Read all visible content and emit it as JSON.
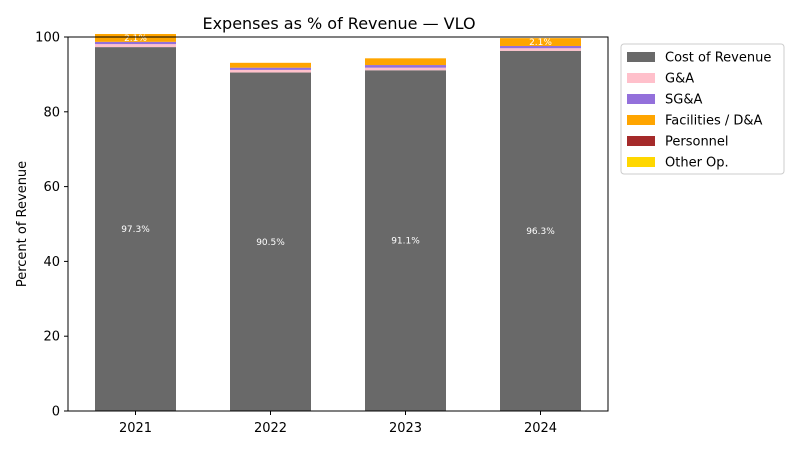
{
  "chart_data": {
    "type": "bar",
    "stacked": true,
    "title": "Expenses as % of Revenue — VLO",
    "xlabel": "",
    "ylabel": "Percent of Revenue",
    "categories": [
      "2021",
      "2022",
      "2023",
      "2024"
    ],
    "ylim": [
      0,
      100
    ],
    "yticks": [
      0,
      20,
      40,
      60,
      80,
      100
    ],
    "grid": false,
    "legend_position": "outside-right",
    "series": [
      {
        "name": "Cost of Revenue",
        "color": "#696969",
        "values": [
          97.3,
          90.5,
          91.1,
          96.3
        ],
        "labels": [
          "97.3%",
          "90.5%",
          "91.1%",
          "96.3%"
        ]
      },
      {
        "name": "G&A",
        "color": "#ffc0cb",
        "values": [
          0.8,
          0.7,
          0.7,
          0.7
        ],
        "labels": [
          "",
          "",
          "",
          ""
        ]
      },
      {
        "name": "SG&A",
        "color": "#9370db",
        "values": [
          0.6,
          0.6,
          0.7,
          0.6
        ],
        "labels": [
          "",
          "",
          "",
          ""
        ]
      },
      {
        "name": "Facilities / D&A",
        "color": "#ffa500",
        "values": [
          2.1,
          1.3,
          1.8,
          2.1
        ],
        "labels": [
          "2.1%",
          "",
          "",
          "2.1%"
        ]
      },
      {
        "name": "Personnel",
        "color": "#a52a2a",
        "values": [
          0,
          0,
          0,
          0
        ],
        "labels": [
          "",
          "",
          "",
          ""
        ]
      },
      {
        "name": "Other Op.",
        "color": "#ffd700",
        "values": [
          0,
          0,
          0,
          0
        ],
        "labels": [
          "",
          "",
          "",
          ""
        ]
      }
    ]
  }
}
